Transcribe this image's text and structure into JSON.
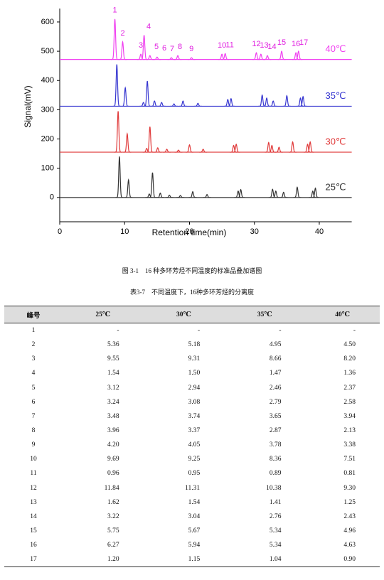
{
  "chart_data": {
    "type": "line",
    "x_label": "Retention time(min)",
    "y_label": "Signal(mV)",
    "xlim": [
      0,
      45
    ],
    "xticks": [
      0,
      10,
      20,
      30,
      40
    ],
    "ylim": [
      -83,
      646
    ],
    "yticks": [
      0,
      100,
      200,
      300,
      400,
      500,
      600
    ],
    "peak_labels": [
      "1",
      "2",
      "3",
      "4",
      "5",
      "6",
      "7",
      "8",
      "9",
      "10",
      "11",
      "12",
      "13",
      "14",
      "15",
      "16",
      "17"
    ],
    "label_color": "#e020e0",
    "series": [
      {
        "name": "25℃",
        "color": "#333333",
        "baseline": 0,
        "x": [
          9.2,
          10.6,
          13.8,
          14.3,
          15.5,
          16.9,
          18.6,
          20.5,
          22.7,
          27.5,
          27.9,
          32.8,
          33.3,
          34.5,
          36.6,
          39.0,
          39.4
        ],
        "values": [
          140,
          60,
          12,
          85,
          15,
          8,
          7,
          20,
          10,
          22,
          27,
          28,
          22,
          18,
          35,
          22,
          32
        ]
      },
      {
        "name": "30℃",
        "color": "#e03a3a",
        "baseline": 155,
        "x": [
          9.0,
          10.4,
          13.4,
          13.9,
          15.1,
          16.5,
          18.3,
          20.0,
          22.1,
          26.8,
          27.2,
          32.2,
          32.7,
          33.8,
          35.9,
          38.2,
          38.6
        ],
        "values": [
          295,
          218,
          168,
          242,
          170,
          165,
          162,
          180,
          165,
          178,
          182,
          188,
          178,
          172,
          190,
          182,
          190
        ]
      },
      {
        "name": "35℃",
        "color": "#3535d0",
        "baseline": 312,
        "x": [
          8.8,
          10.1,
          12.9,
          13.5,
          14.6,
          15.7,
          17.6,
          19.0,
          21.3,
          25.9,
          26.4,
          31.2,
          31.9,
          32.9,
          35.0,
          37.1,
          37.5
        ],
        "values": [
          455,
          375,
          325,
          398,
          330,
          325,
          320,
          330,
          322,
          335,
          338,
          350,
          340,
          330,
          348,
          340,
          345
        ]
      },
      {
        "name": "40℃",
        "color": "#f040f0",
        "baseline": 472,
        "x": [
          8.5,
          9.7,
          12.5,
          13.0,
          13.9,
          15.0,
          17.2,
          18.2,
          20.3,
          25.0,
          25.5,
          30.3,
          31.0,
          32.0,
          34.2,
          36.4,
          36.8
        ],
        "values": [
          610,
          532,
          490,
          555,
          485,
          480,
          478,
          485,
          478,
          490,
          492,
          495,
          490,
          485,
          500,
          495,
          500
        ]
      }
    ]
  },
  "figure_caption": "图 3-1　16 种多环芳烃不同温度的标准品叠加谱图",
  "table": {
    "caption": "表3-7　不同温度下，16种多环芳烃的分离度",
    "header": [
      "峰号",
      "25℃",
      "30℃",
      "35℃",
      "40℃"
    ],
    "rows": [
      [
        "1",
        "-",
        "-",
        "-",
        "-"
      ],
      [
        "2",
        "5.36",
        "5.18",
        "4.95",
        "4.50"
      ],
      [
        "3",
        "9.55",
        "9.31",
        "8.66",
        "8.20"
      ],
      [
        "4",
        "1.54",
        "1.50",
        "1.47",
        "1.36"
      ],
      [
        "5",
        "3.12",
        "2.94",
        "2.46",
        "2.37"
      ],
      [
        "6",
        "3.24",
        "3.08",
        "2.79",
        "2.58"
      ],
      [
        "7",
        "3.48",
        "3.74",
        "3.65",
        "3.94"
      ],
      [
        "8",
        "3.96",
        "3.37",
        "2.87",
        "2.13"
      ],
      [
        "9",
        "4.20",
        "4.05",
        "3.78",
        "3.38"
      ],
      [
        "10",
        "9.69",
        "9.25",
        "8.36",
        "7.51"
      ],
      [
        "11",
        "0.96",
        "0.95",
        "0.89",
        "0.81"
      ],
      [
        "12",
        "11.84",
        "11.31",
        "10.38",
        "9.30"
      ],
      [
        "13",
        "1.62",
        "1.54",
        "1.41",
        "1.25"
      ],
      [
        "14",
        "3.22",
        "3.04",
        "2.76",
        "2.43"
      ],
      [
        "15",
        "5.75",
        "5.67",
        "5.34",
        "4.96"
      ],
      [
        "16",
        "6.27",
        "5.94",
        "5.34",
        "4.63"
      ],
      [
        "17",
        "1.20",
        "1.15",
        "1.04",
        "0.90"
      ]
    ]
  }
}
